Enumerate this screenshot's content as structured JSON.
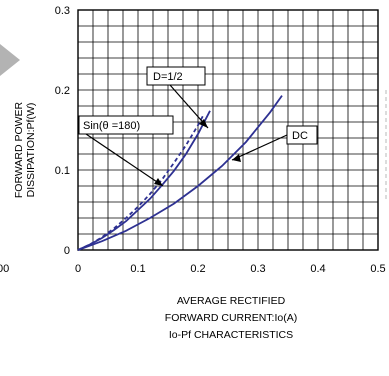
{
  "chart_data": {
    "type": "line",
    "title": "Io-Pf CHARACTERISTICS",
    "xlabel": [
      "AVERAGE RECTIFIED",
      "FORWARD CURRENT:Io(A)"
    ],
    "ylabel": [
      "FORWARD POWER",
      "DISSIPATION:Pf(W)"
    ],
    "xlim": [
      0,
      0.5
    ],
    "ylim": [
      0,
      0.3
    ],
    "x_ticks": [
      "0",
      "0.1",
      "0.2",
      "0.3",
      "0.4",
      "0.5"
    ],
    "y_ticks": [
      "0",
      "0.1",
      "0.2",
      "0.3"
    ],
    "grid": true,
    "left_edge_tick": "00",
    "series": [
      {
        "name": "Sin(θ =180)",
        "style": "solid",
        "points": [
          [
            0,
            0
          ],
          [
            0.02,
            0.007
          ],
          [
            0.04,
            0.015
          ],
          [
            0.06,
            0.025
          ],
          [
            0.08,
            0.036
          ],
          [
            0.1,
            0.05
          ],
          [
            0.12,
            0.064
          ],
          [
            0.14,
            0.081
          ],
          [
            0.16,
            0.099
          ],
          [
            0.18,
            0.12
          ],
          [
            0.2,
            0.145
          ],
          [
            0.22,
            0.174
          ]
        ]
      },
      {
        "name": "D=1/2",
        "style": "dashed",
        "points": [
          [
            0,
            0
          ],
          [
            0.02,
            0.007
          ],
          [
            0.04,
            0.016
          ],
          [
            0.06,
            0.027
          ],
          [
            0.08,
            0.04
          ],
          [
            0.1,
            0.054
          ],
          [
            0.12,
            0.07
          ],
          [
            0.14,
            0.088
          ],
          [
            0.16,
            0.109
          ],
          [
            0.18,
            0.131
          ],
          [
            0.2,
            0.156
          ],
          [
            0.21,
            0.17
          ]
        ]
      },
      {
        "name": "DC",
        "style": "solid",
        "points": [
          [
            0,
            0
          ],
          [
            0.04,
            0.011
          ],
          [
            0.08,
            0.024
          ],
          [
            0.12,
            0.04
          ],
          [
            0.16,
            0.058
          ],
          [
            0.2,
            0.08
          ],
          [
            0.24,
            0.105
          ],
          [
            0.28,
            0.135
          ],
          [
            0.32,
            0.172
          ],
          [
            0.34,
            0.193
          ]
        ]
      }
    ],
    "annotations": [
      {
        "text": "D=1/2",
        "points_to": "D=1/2"
      },
      {
        "text": "Sin(θ =180)",
        "points_to": "Sin(θ =180)"
      },
      {
        "text": "DC",
        "points_to": "DC"
      }
    ],
    "colors": {
      "series": "#2e3192",
      "grid": "#000000",
      "decor": "#b3b3b3"
    }
  }
}
